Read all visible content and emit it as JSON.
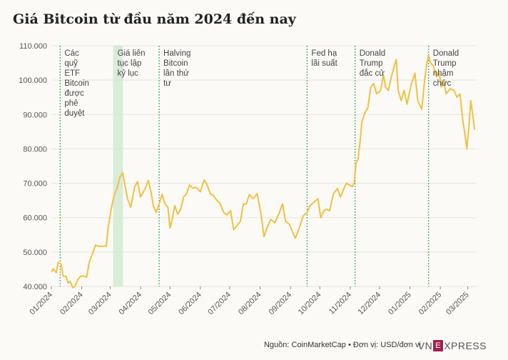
{
  "title": "Giá Bitcoin từ đầu năm 2024 đến nay",
  "footer": {
    "source": "Nguồn: CoinMarketCap • Đơn vị: USD/đơn vị",
    "logo_left": "VN",
    "logo_box": "E",
    "logo_right": "XPRESS"
  },
  "colors": {
    "line": "#f0c040",
    "event": "#3aa65a",
    "band": "#cfe8cf",
    "grid": "#e6e4de"
  },
  "chart_data": {
    "type": "line",
    "title": "Giá Bitcoin từ đầu năm 2024 đến nay",
    "xlabel": "",
    "ylabel": "",
    "ylim": [
      40000,
      110000
    ],
    "yticks": [
      40000,
      50000,
      60000,
      70000,
      80000,
      90000,
      100000,
      110000
    ],
    "ytick_labels": [
      "40.000",
      "50.000",
      "60.000",
      "70.000",
      "80.000",
      "90.000",
      "100.000",
      "110.000"
    ],
    "xlim": [
      "2024-01-01",
      "2025-03-10"
    ],
    "xticks": [
      "2024-01-01",
      "2024-02-01",
      "2024-03-01",
      "2024-04-01",
      "2024-05-01",
      "2024-06-01",
      "2024-07-01",
      "2024-08-01",
      "2024-09-01",
      "2024-10-01",
      "2024-11-01",
      "2024-12-01",
      "2025-01-01",
      "2025-02-01",
      "2025-03-01"
    ],
    "xtick_labels": [
      "01/2024",
      "02/2024",
      "03/2024",
      "04/2024",
      "05/2024",
      "06/2024",
      "07/2024",
      "08/2024",
      "09/2024",
      "10/2024",
      "11/2024",
      "12/2024",
      "01/2025",
      "02/2025",
      "03/2025"
    ],
    "grid": "horizontal",
    "series": [
      {
        "x": [
          "2024-01-01",
          "2024-01-03",
          "2024-01-06",
          "2024-01-08",
          "2024-01-11",
          "2024-01-13",
          "2024-01-16",
          "2024-01-18",
          "2024-01-20",
          "2024-01-23",
          "2024-01-25",
          "2024-01-28",
          "2024-01-31",
          "2024-02-03",
          "2024-02-06",
          "2024-02-09",
          "2024-02-12",
          "2024-02-15",
          "2024-02-18",
          "2024-02-22",
          "2024-02-26",
          "2024-02-28",
          "2024-03-02",
          "2024-03-05",
          "2024-03-08",
          "2024-03-11",
          "2024-03-14",
          "2024-03-17",
          "2024-03-19",
          "2024-03-22",
          "2024-03-26",
          "2024-03-29",
          "2024-04-01",
          "2024-04-03",
          "2024-04-06",
          "2024-04-09",
          "2024-04-12",
          "2024-04-14",
          "2024-04-17",
          "2024-04-20",
          "2024-04-23",
          "2024-04-26",
          "2024-04-29",
          "2024-05-01",
          "2024-05-03",
          "2024-05-06",
          "2024-05-09",
          "2024-05-12",
          "2024-05-15",
          "2024-05-18",
          "2024-05-21",
          "2024-05-24",
          "2024-05-28",
          "2024-06-01",
          "2024-06-05",
          "2024-06-08",
          "2024-06-11",
          "2024-06-14",
          "2024-06-18",
          "2024-06-21",
          "2024-06-25",
          "2024-06-28",
          "2024-07-02",
          "2024-07-05",
          "2024-07-08",
          "2024-07-12",
          "2024-07-15",
          "2024-07-18",
          "2024-07-21",
          "2024-07-25",
          "2024-07-29",
          "2024-08-02",
          "2024-08-05",
          "2024-08-08",
          "2024-08-12",
          "2024-08-16",
          "2024-08-20",
          "2024-08-24",
          "2024-08-27",
          "2024-08-31",
          "2024-09-03",
          "2024-09-06",
          "2024-09-10",
          "2024-09-14",
          "2024-09-18",
          "2024-09-21",
          "2024-09-25",
          "2024-09-29",
          "2024-10-02",
          "2024-10-05",
          "2024-10-08",
          "2024-10-11",
          "2024-10-15",
          "2024-10-19",
          "2024-10-22",
          "2024-10-25",
          "2024-10-28",
          "2024-10-31",
          "2024-11-03",
          "2024-11-05",
          "2024-11-07",
          "2024-11-09",
          "2024-11-11",
          "2024-11-13",
          "2024-11-16",
          "2024-11-19",
          "2024-11-22",
          "2024-11-25",
          "2024-11-28",
          "2024-12-02",
          "2024-12-05",
          "2024-12-07",
          "2024-12-10",
          "2024-12-13",
          "2024-12-16",
          "2024-12-18",
          "2024-12-20",
          "2024-12-23",
          "2024-12-26",
          "2024-12-29",
          "2025-01-02",
          "2025-01-06",
          "2025-01-09",
          "2025-01-13",
          "2025-01-16",
          "2025-01-18",
          "2025-01-20",
          "2025-01-22",
          "2025-01-25",
          "2025-01-28",
          "2025-01-31",
          "2025-02-02",
          "2025-02-04",
          "2025-02-07",
          "2025-02-11",
          "2025-02-15",
          "2025-02-18",
          "2025-02-21",
          "2025-02-24",
          "2025-02-26",
          "2025-02-28",
          "2025-03-02",
          "2025-03-04",
          "2025-03-06",
          "2025-03-08"
        ],
        "values": [
          44200,
          45100,
          44000,
          47000,
          46500,
          43000,
          43000,
          41000,
          41500,
          39600,
          40000,
          42000,
          43000,
          43000,
          42700,
          47500,
          49500,
          52000,
          51700,
          51700,
          51700,
          57000,
          62500,
          66500,
          68500,
          71800,
          73000,
          68000,
          65300,
          63000,
          69000,
          70500,
          66000,
          67000,
          68600,
          70800,
          67000,
          63500,
          61500,
          64000,
          66800,
          64000,
          63000,
          57000,
          59000,
          63500,
          61000,
          62500,
          66000,
          67000,
          69500,
          68600,
          68800,
          67500,
          71000,
          69500,
          67000,
          66500,
          65000,
          64200,
          61500,
          60800,
          62000,
          56500,
          57500,
          59000,
          64000,
          64000,
          66700,
          65500,
          67000,
          61000,
          54500,
          57000,
          59500,
          58500,
          61000,
          64000,
          59000,
          58000,
          56000,
          54000,
          57000,
          60500,
          61500,
          63500,
          64500,
          65500,
          60000,
          62000,
          62500,
          62000,
          67000,
          68500,
          66000,
          68000,
          70000,
          69500,
          69000,
          70000,
          76000,
          77000,
          82000,
          88000,
          90500,
          92000,
          98000,
          99000,
          96000,
          97000,
          101500,
          98000,
          97000,
          101000,
          104000,
          106000,
          97000,
          94000,
          97000,
          93000,
          98500,
          102000,
          94000,
          91500,
          100000,
          104500,
          107000,
          105000,
          104000,
          101000,
          102000,
          98000,
          100000,
          96000,
          97500,
          97000,
          95000,
          96000,
          88000,
          84500,
          80000,
          86000,
          94000,
          90000,
          85500
        ]
      }
    ],
    "events": [
      {
        "label": "Các quỹ ETF Bitcoin được phê duyệt",
        "date": "2024-01-10"
      },
      {
        "label": "Giá liên tục lập kỷ lục",
        "date_start": "2024-03-04",
        "date_end": "2024-03-14"
      },
      {
        "label": "Halving Bitcoin lần thứ tư",
        "date": "2024-04-20"
      },
      {
        "label": "Fed hạ lãi suất",
        "date": "2024-09-18"
      },
      {
        "label": "Donald Trump đắc cử",
        "date": "2024-11-06"
      },
      {
        "label": "Donald Trump nhậm chức",
        "date": "2025-01-20"
      }
    ]
  }
}
